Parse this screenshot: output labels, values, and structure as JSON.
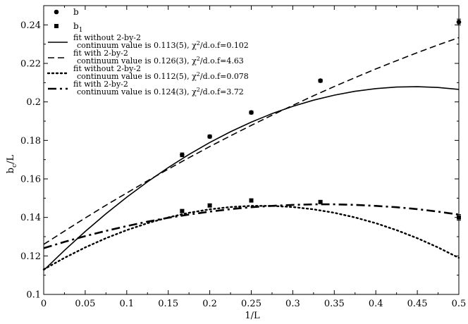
{
  "chart_data": {
    "type": "scatter",
    "title": "",
    "xlabel": "1/L",
    "ylabel_main": "b",
    "ylabel_sub": "c",
    "ylabel_suffix": "/L",
    "xlim": [
      0,
      0.5
    ],
    "ylim": [
      0.1,
      0.25
    ],
    "x_ticks": [
      {
        "value": 0,
        "label": "0"
      },
      {
        "value": 0.05,
        "label": "0.05"
      },
      {
        "value": 0.1,
        "label": "0.1"
      },
      {
        "value": 0.15,
        "label": "0.15"
      },
      {
        "value": 0.2,
        "label": "0.2"
      },
      {
        "value": 0.25,
        "label": "0.25"
      },
      {
        "value": 0.3,
        "label": "0.3"
      },
      {
        "value": 0.35,
        "label": "0.35"
      },
      {
        "value": 0.4,
        "label": "0.4"
      },
      {
        "value": 0.45,
        "label": "0.45"
      },
      {
        "value": 0.5,
        "label": "0.5"
      }
    ],
    "y_ticks": [
      {
        "value": 0.1,
        "label": "0.1"
      },
      {
        "value": 0.12,
        "label": "0.12"
      },
      {
        "value": 0.14,
        "label": "0.14"
      },
      {
        "value": 0.16,
        "label": "0.16"
      },
      {
        "value": 0.18,
        "label": "0.18"
      },
      {
        "value": 0.2,
        "label": "0.2"
      },
      {
        "value": 0.22,
        "label": "0.22"
      },
      {
        "value": 0.24,
        "label": "0.24"
      }
    ],
    "grid": false,
    "legend_position": "top-left",
    "series": [
      {
        "name": "b",
        "marker": "circle",
        "points": [
          {
            "x": 0.1667,
            "y": 0.1725,
            "err": 0.001
          },
          {
            "x": 0.2,
            "y": 0.182,
            "err": 0.0008
          },
          {
            "x": 0.25,
            "y": 0.1945,
            "err": 0.0008
          },
          {
            "x": 0.3333,
            "y": 0.211,
            "err": 0.0008
          },
          {
            "x": 0.5,
            "y": 0.2415,
            "err": 0.0015
          }
        ]
      },
      {
        "name": "b",
        "name_sub": "1",
        "marker": "square",
        "points": [
          {
            "x": 0.1667,
            "y": 0.1433,
            "err": 0.0008
          },
          {
            "x": 0.2,
            "y": 0.1462,
            "err": 0.0008
          },
          {
            "x": 0.25,
            "y": 0.1488,
            "err": 0.0008
          },
          {
            "x": 0.3333,
            "y": 0.148,
            "err": 0.0008
          },
          {
            "x": 0.5,
            "y": 0.14,
            "err": 0.0015
          }
        ]
      }
    ],
    "fits": [
      {
        "line1": "fit without 2-by-2",
        "line2_prefix": "continuum value is 0.113(5), χ",
        "line2_sup": "2",
        "line2_suffix": "/d.o.f=0.102",
        "style": "solid",
        "x": [
          0,
          0.025,
          0.05,
          0.075,
          0.1,
          0.125,
          0.15,
          0.175,
          0.2,
          0.225,
          0.25,
          0.275,
          0.3,
          0.325,
          0.35,
          0.375,
          0.4,
          0.425,
          0.45,
          0.475,
          0.5
        ],
        "y": [
          0.1125,
          0.1229,
          0.1327,
          0.1419,
          0.1505,
          0.1585,
          0.1659,
          0.1727,
          0.1789,
          0.1845,
          0.1895,
          0.1939,
          0.1977,
          0.2009,
          0.2035,
          0.2055,
          0.2069,
          0.2077,
          0.2079,
          0.2075,
          0.2065
        ]
      },
      {
        "line1": "fit with 2-by-2",
        "line2_prefix": "continuum value is 0.126(3), χ",
        "line2_sup": "2",
        "line2_suffix": "/d.o.f=4.63",
        "style": "dashed",
        "x": [
          0,
          0.025,
          0.05,
          0.075,
          0.1,
          0.125,
          0.15,
          0.175,
          0.2,
          0.225,
          0.25,
          0.275,
          0.3,
          0.325,
          0.35,
          0.375,
          0.4,
          0.425,
          0.45,
          0.475,
          0.5
        ],
        "y": [
          0.126,
          0.1329,
          0.1397,
          0.1463,
          0.1527,
          0.159,
          0.1651,
          0.171,
          0.1768,
          0.1824,
          0.1878,
          0.1931,
          0.1982,
          0.2032,
          0.208,
          0.2126,
          0.2171,
          0.2214,
          0.2256,
          0.2296,
          0.2334
        ]
      },
      {
        "line1": "fit without 2-by-2",
        "line2_prefix": "continuum value is 0.112(5), χ",
        "line2_sup": "2",
        "line2_suffix": "/d.o.f=0.078",
        "style": "dotted",
        "x": [
          0,
          0.025,
          0.05,
          0.075,
          0.1,
          0.125,
          0.15,
          0.175,
          0.2,
          0.225,
          0.25,
          0.275,
          0.3,
          0.325,
          0.35,
          0.375,
          0.4,
          0.425,
          0.45,
          0.475,
          0.5
        ],
        "y": [
          0.113,
          0.119,
          0.1244,
          0.1292,
          0.1334,
          0.137,
          0.14,
          0.1424,
          0.1442,
          0.1454,
          0.146,
          0.146,
          0.1454,
          0.1442,
          0.1424,
          0.14,
          0.137,
          0.1334,
          0.1292,
          0.1244,
          0.119
        ]
      },
      {
        "line1": "fit with 2-by-2",
        "line2_prefix": "continuum value is 0.124(3), χ",
        "line2_sup": "2",
        "line2_suffix": "/d.o.f=3.72",
        "style": "dashdot",
        "x": [
          0,
          0.025,
          0.05,
          0.075,
          0.1,
          0.125,
          0.15,
          0.175,
          0.2,
          0.225,
          0.25,
          0.275,
          0.3,
          0.325,
          0.35,
          0.375,
          0.4,
          0.425,
          0.45,
          0.475,
          0.5
        ],
        "y": [
          0.124,
          0.1273,
          0.1303,
          0.133,
          0.1355,
          0.1378,
          0.1398,
          0.1415,
          0.143,
          0.1443,
          0.1453,
          0.146,
          0.1465,
          0.1468,
          0.1468,
          0.1465,
          0.146,
          0.1453,
          0.1443,
          0.143,
          0.1415
        ]
      }
    ]
  }
}
